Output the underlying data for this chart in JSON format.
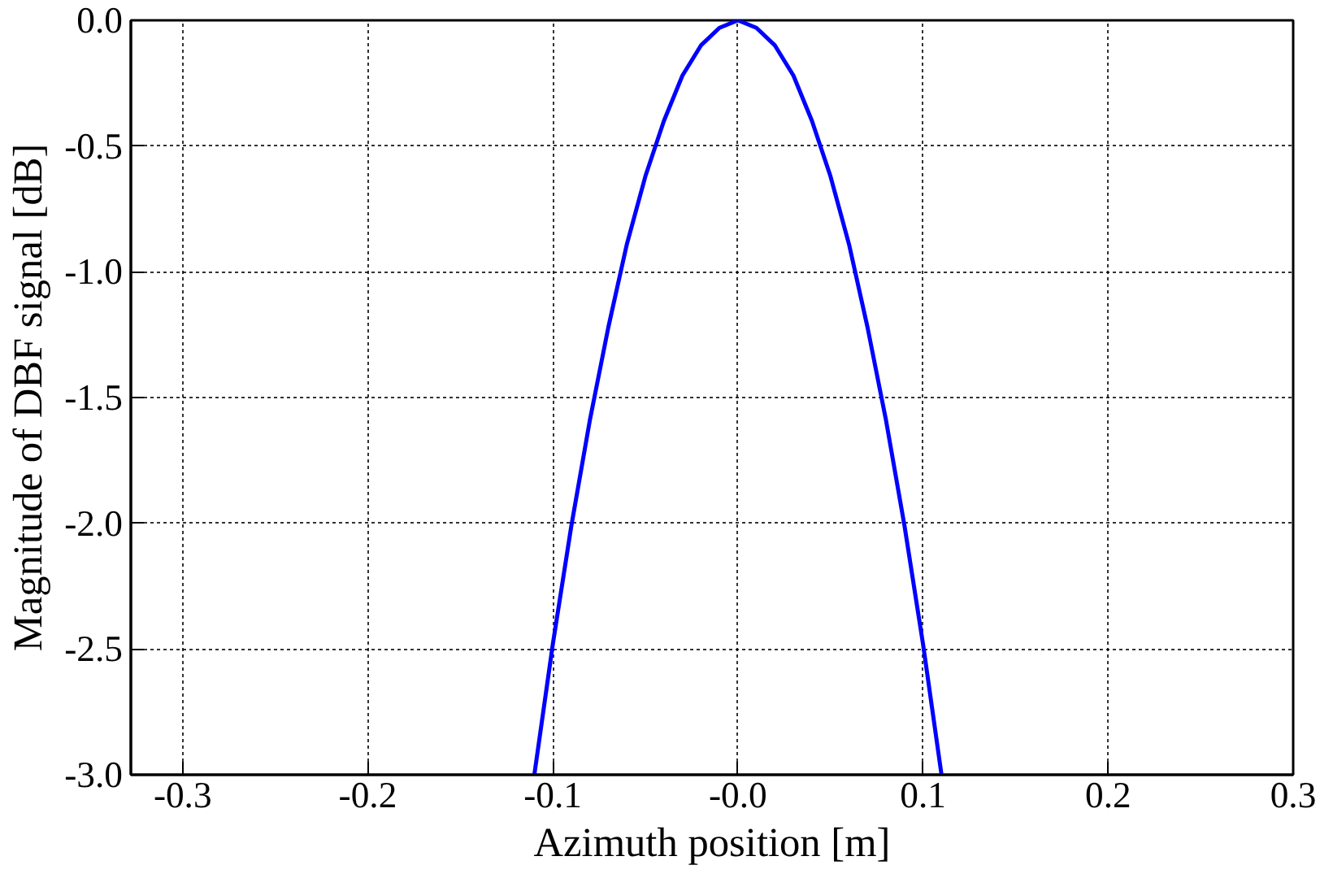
{
  "chart_data": {
    "type": "line",
    "xlabel": "Azimuth position [m]",
    "ylabel": "Magnitude of DBF signal [dB]",
    "x": [
      -0.11,
      -0.1,
      -0.09,
      -0.08,
      -0.07,
      -0.06,
      -0.05,
      -0.04,
      -0.03,
      -0.02,
      -0.01,
      0.0,
      0.01,
      0.02,
      0.03,
      0.04,
      0.05,
      0.06,
      0.07,
      0.08,
      0.09,
      0.1,
      0.11
    ],
    "series": [
      {
        "color": "#0000ff",
        "values": [
          -3.0,
          -2.48,
          -2.01,
          -1.59,
          -1.22,
          -0.89,
          -0.62,
          -0.4,
          -0.22,
          -0.1,
          -0.03,
          0.0,
          -0.03,
          -0.1,
          -0.22,
          -0.4,
          -0.62,
          -0.89,
          -1.22,
          -1.59,
          -2.01,
          -2.48,
          -3.0
        ]
      }
    ],
    "xlim": [
      -0.328,
      0.3
    ],
    "ylim": [
      -3.0,
      0.0
    ],
    "xticks": [
      -0.3,
      -0.2,
      -0.1,
      {
        "value": 0,
        "label": "-0.0"
      },
      0.1,
      0.2,
      0.3
    ],
    "yticks": [
      {
        "value": 0,
        "label": "0.0"
      },
      -0.5,
      {
        "value": -1,
        "label": "-1.0"
      },
      -1.5,
      {
        "value": -2,
        "label": "-2.0"
      },
      -2.5,
      {
        "value": -3,
        "label": "-3.0"
      }
    ],
    "grid": true,
    "line_style": "solid"
  }
}
